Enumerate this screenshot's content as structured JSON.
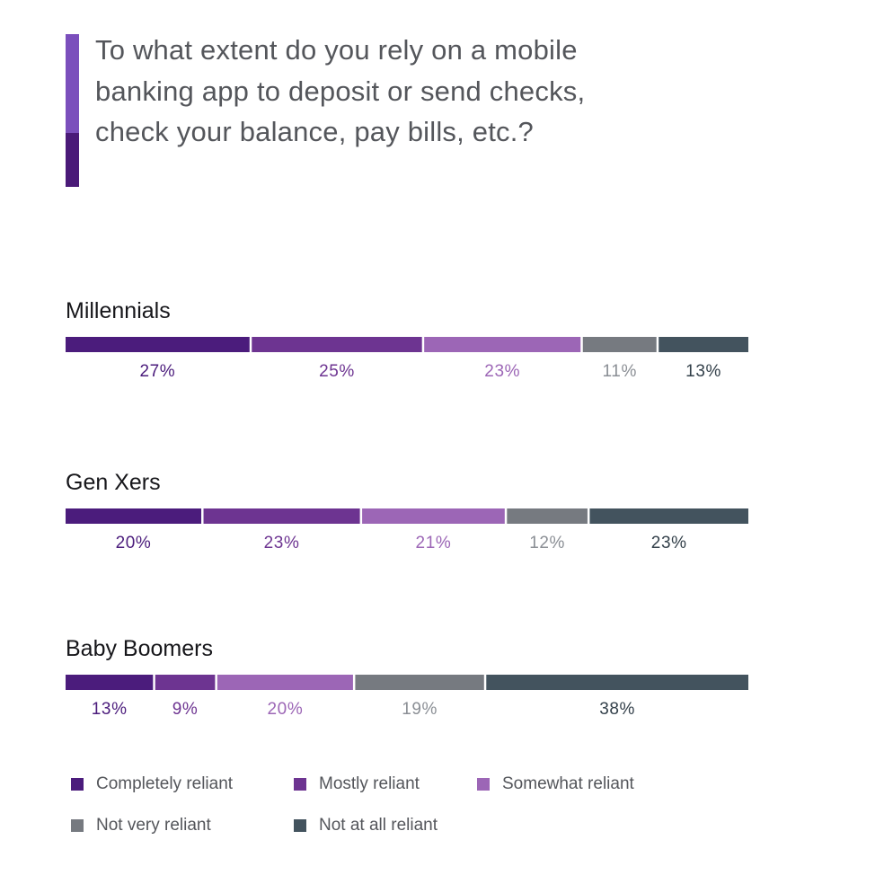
{
  "title": "To what extent do you rely on a mobile banking app to deposit or send checks, check your balance, pay bills, etc.?",
  "accent_colors": {
    "top": "#7b4fbc",
    "bottom": "#4a1a78"
  },
  "chart_data": {
    "type": "bar",
    "orientation": "horizontal",
    "stacked": true,
    "unit": "%",
    "categories": [
      "Millennials",
      "Gen Xers",
      "Baby Boomers"
    ],
    "series": [
      {
        "name": "Completely reliant",
        "color": "#4b1c7c",
        "label_color": "#4b1c7c",
        "values": [
          27,
          20,
          13
        ]
      },
      {
        "name": "Mostly reliant",
        "color": "#6d3491",
        "label_color": "#6d3491",
        "values": [
          25,
          23,
          9
        ]
      },
      {
        "name": "Somewhat reliant",
        "color": "#9c66b6",
        "label_color": "#9c66b6",
        "values": [
          23,
          21,
          20
        ]
      },
      {
        "name": "Not very reliant",
        "color": "#767a80",
        "label_color": "#8b8f95",
        "values": [
          11,
          12,
          19
        ]
      },
      {
        "name": "Not at all reliant",
        "color": "#43535e",
        "label_color": "#33404a",
        "values": [
          13,
          23,
          38
        ]
      }
    ],
    "value_labels": [
      [
        "27%",
        "25%",
        "23%",
        "11%",
        "13%"
      ],
      [
        "20%",
        "23%",
        "21%",
        "12%",
        "23%"
      ],
      [
        "13%",
        "9%",
        "20%",
        "19%",
        "38%"
      ]
    ],
    "legend_position": "bottom",
    "grid": false
  }
}
